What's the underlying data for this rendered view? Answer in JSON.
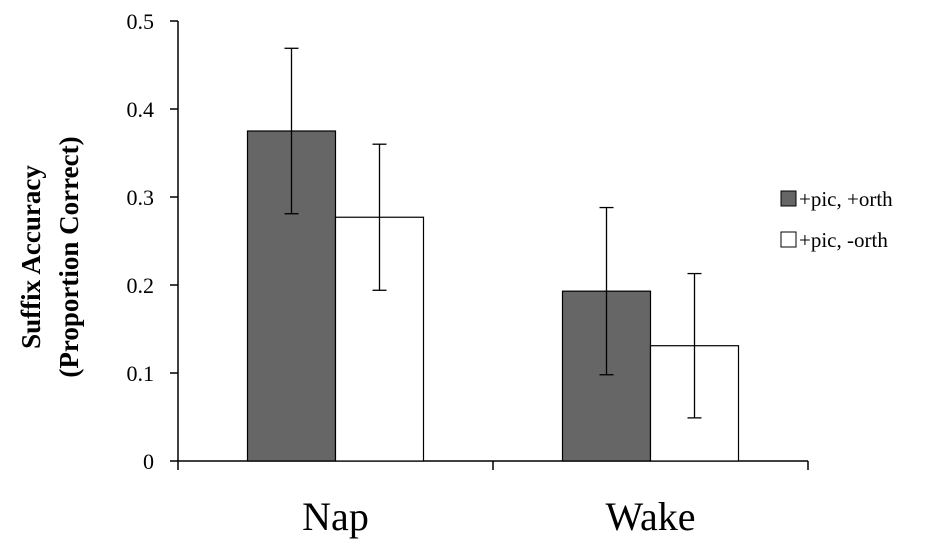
{
  "chart_data": {
    "type": "bar",
    "categories": [
      "Nap",
      "Wake"
    ],
    "series": [
      {
        "name": "+pic, +orth",
        "values": [
          0.375,
          0.193
        ],
        "error": [
          0.094,
          0.095
        ],
        "color": "#666666"
      },
      {
        "name": "+pic, -orth",
        "values": [
          0.277,
          0.131
        ],
        "error": [
          0.083,
          0.082
        ],
        "color": "#ffffff"
      }
    ],
    "ylabel_lines": [
      "Suffix Accuracy",
      "(Proportion Correct)"
    ],
    "xlabel": "",
    "title": "",
    "ylim": [
      0,
      0.5
    ],
    "yticks": [
      "0",
      "0.1",
      "0.2",
      "0.3",
      "0.4",
      "0.5"
    ],
    "grid": false,
    "legend_position": "right",
    "bar_edge_color": "#000000"
  }
}
